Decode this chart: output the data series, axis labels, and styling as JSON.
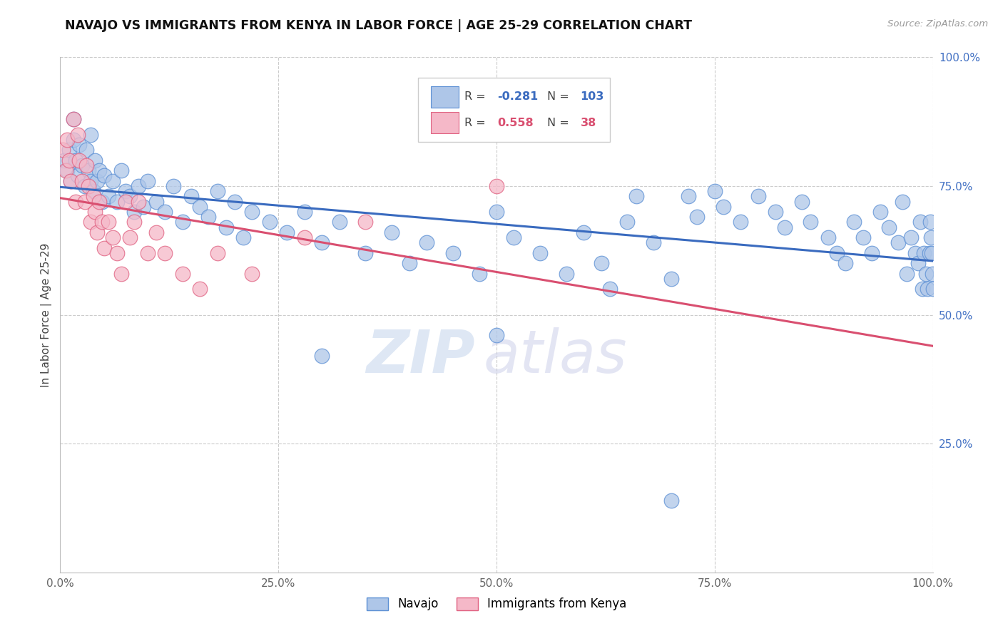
{
  "title": "NAVAJO VS IMMIGRANTS FROM KENYA IN LABOR FORCE | AGE 25-29 CORRELATION CHART",
  "source": "Source: ZipAtlas.com",
  "ylabel": "In Labor Force | Age 25-29",
  "xlim": [
    0.0,
    1.0
  ],
  "ylim": [
    0.0,
    1.0
  ],
  "blue_R": -0.281,
  "blue_N": 103,
  "pink_R": 0.558,
  "pink_N": 38,
  "blue_color": "#aec6e8",
  "pink_color": "#f5b8c8",
  "blue_line_color": "#3a6bbf",
  "pink_line_color": "#d94f70",
  "blue_edge_color": "#5b8fd4",
  "pink_edge_color": "#e06080",
  "background_color": "#ffffff",
  "grid_color": "#cccccc",
  "ytick_color": "#4472c4",
  "xtick_color": "#666666",
  "title_color": "#111111",
  "source_color": "#999999",
  "ylabel_color": "#444444",
  "watermark_zip_color": "#c8d8ee",
  "watermark_atlas_color": "#c8cce8",
  "blue_scatter_x": [
    0.005,
    0.008,
    0.01,
    0.012,
    0.015,
    0.015,
    0.018,
    0.02,
    0.022,
    0.025,
    0.028,
    0.03,
    0.032,
    0.035,
    0.035,
    0.038,
    0.04,
    0.042,
    0.045,
    0.048,
    0.05,
    0.055,
    0.06,
    0.065,
    0.07,
    0.075,
    0.08,
    0.085,
    0.09,
    0.095,
    0.1,
    0.11,
    0.12,
    0.13,
    0.14,
    0.15,
    0.16,
    0.17,
    0.18,
    0.19,
    0.2,
    0.21,
    0.22,
    0.24,
    0.26,
    0.28,
    0.3,
    0.32,
    0.35,
    0.38,
    0.4,
    0.42,
    0.45,
    0.48,
    0.5,
    0.52,
    0.55,
    0.58,
    0.6,
    0.62,
    0.63,
    0.65,
    0.66,
    0.68,
    0.7,
    0.72,
    0.73,
    0.75,
    0.76,
    0.78,
    0.8,
    0.82,
    0.83,
    0.85,
    0.86,
    0.88,
    0.89,
    0.9,
    0.91,
    0.92,
    0.93,
    0.94,
    0.95,
    0.96,
    0.965,
    0.97,
    0.975,
    0.98,
    0.983,
    0.986,
    0.988,
    0.99,
    0.992,
    0.994,
    0.996,
    0.997,
    0.998,
    0.999,
    0.9995,
    1.0,
    0.3,
    0.5,
    0.7
  ],
  "blue_scatter_y": [
    0.8,
    0.78,
    0.82,
    0.76,
    0.84,
    0.88,
    0.8,
    0.77,
    0.83,
    0.79,
    0.75,
    0.82,
    0.78,
    0.76,
    0.85,
    0.74,
    0.8,
    0.76,
    0.78,
    0.72,
    0.77,
    0.73,
    0.76,
    0.72,
    0.78,
    0.74,
    0.73,
    0.7,
    0.75,
    0.71,
    0.76,
    0.72,
    0.7,
    0.75,
    0.68,
    0.73,
    0.71,
    0.69,
    0.74,
    0.67,
    0.72,
    0.65,
    0.7,
    0.68,
    0.66,
    0.7,
    0.64,
    0.68,
    0.62,
    0.66,
    0.6,
    0.64,
    0.62,
    0.58,
    0.7,
    0.65,
    0.62,
    0.58,
    0.66,
    0.6,
    0.55,
    0.68,
    0.73,
    0.64,
    0.57,
    0.73,
    0.69,
    0.74,
    0.71,
    0.68,
    0.73,
    0.7,
    0.67,
    0.72,
    0.68,
    0.65,
    0.62,
    0.6,
    0.68,
    0.65,
    0.62,
    0.7,
    0.67,
    0.64,
    0.72,
    0.58,
    0.65,
    0.62,
    0.6,
    0.68,
    0.55,
    0.62,
    0.58,
    0.55,
    0.62,
    0.68,
    0.65,
    0.62,
    0.58,
    0.55,
    0.42,
    0.46,
    0.14
  ],
  "pink_scatter_x": [
    0.003,
    0.006,
    0.008,
    0.01,
    0.012,
    0.015,
    0.018,
    0.02,
    0.022,
    0.025,
    0.028,
    0.03,
    0.032,
    0.035,
    0.038,
    0.04,
    0.042,
    0.045,
    0.048,
    0.05,
    0.055,
    0.06,
    0.065,
    0.07,
    0.075,
    0.08,
    0.085,
    0.09,
    0.1,
    0.11,
    0.12,
    0.14,
    0.16,
    0.18,
    0.22,
    0.28,
    0.35,
    0.5
  ],
  "pink_scatter_y": [
    0.82,
    0.78,
    0.84,
    0.8,
    0.76,
    0.88,
    0.72,
    0.85,
    0.8,
    0.76,
    0.72,
    0.79,
    0.75,
    0.68,
    0.73,
    0.7,
    0.66,
    0.72,
    0.68,
    0.63,
    0.68,
    0.65,
    0.62,
    0.58,
    0.72,
    0.65,
    0.68,
    0.72,
    0.62,
    0.66,
    0.62,
    0.58,
    0.55,
    0.62,
    0.58,
    0.65,
    0.68,
    0.75
  ]
}
